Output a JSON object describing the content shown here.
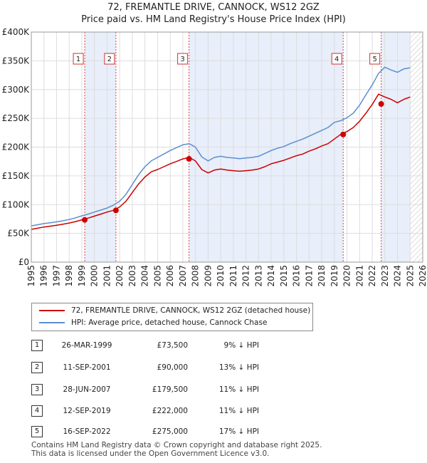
{
  "chart_data": {
    "type": "line",
    "title": "72, FREMANTLE DRIVE, CANNOCK, WS12 2GZ",
    "subtitle": "Price paid vs. HM Land Registry's House Price Index (HPI)",
    "xlim": [
      1995,
      2026
    ],
    "ylim": [
      0,
      400000
    ],
    "yticks": [
      0,
      50000,
      100000,
      150000,
      200000,
      250000,
      300000,
      350000,
      400000
    ],
    "ytick_labels": [
      "£0",
      "£50K",
      "£100K",
      "£150K",
      "£200K",
      "£250K",
      "£300K",
      "£350K",
      "£400K"
    ],
    "xticks": [
      1995,
      1996,
      1997,
      1998,
      1999,
      2000,
      2001,
      2002,
      2003,
      2004,
      2005,
      2006,
      2007,
      2008,
      2009,
      2010,
      2011,
      2012,
      2013,
      2014,
      2015,
      2016,
      2017,
      2018,
      2019,
      2020,
      2021,
      2022,
      2023,
      2024,
      2025,
      2026
    ],
    "series": [
      {
        "name": "HPI: Average price, detached house, Cannock Chase",
        "color": "#5b8fd0",
        "x": [
          1995,
          1995.5,
          1996,
          1996.5,
          1997,
          1997.5,
          1998,
          1998.5,
          1999,
          1999.5,
          2000,
          2000.5,
          2001,
          2001.5,
          2002,
          2002.5,
          2003,
          2003.5,
          2004,
          2004.5,
          2005,
          2005.5,
          2006,
          2006.5,
          2007,
          2007.5,
          2008,
          2008.5,
          2009,
          2009.5,
          2010,
          2010.5,
          2011,
          2011.5,
          2012,
          2012.5,
          2013,
          2013.5,
          2014,
          2014.5,
          2015,
          2015.5,
          2016,
          2016.5,
          2017,
          2017.5,
          2018,
          2018.5,
          2019,
          2019.5,
          2020,
          2020.5,
          2021,
          2021.5,
          2022,
          2022.5,
          2023,
          2023.5,
          2024,
          2024.5,
          2025
        ],
        "y": [
          63000,
          65000,
          67000,
          68500,
          70000,
          72000,
          74000,
          77000,
          80500,
          83500,
          87000,
          90500,
          94000,
          99000,
          106000,
          118000,
          135000,
          152000,
          166000,
          176000,
          182000,
          188000,
          194000,
          199000,
          204000,
          206000,
          200000,
          183000,
          176000,
          182000,
          184000,
          182000,
          181000,
          180000,
          181000,
          182000,
          184000,
          189000,
          194000,
          198000,
          201000,
          206000,
          210000,
          214000,
          219000,
          224000,
          229000,
          234000,
          243000,
          246000,
          251000,
          259000,
          273000,
          291000,
          308000,
          328000,
          339000,
          334000,
          330000,
          336000,
          338000
        ]
      },
      {
        "name": "72, FREMANTLE DRIVE, CANNOCK, WS12 2GZ (detached house)",
        "color": "#cc0000",
        "x": [
          1995,
          1995.5,
          1996,
          1996.5,
          1997,
          1997.5,
          1998,
          1998.5,
          1999,
          1999.5,
          2000,
          2000.5,
          2001,
          2001.5,
          2002,
          2002.5,
          2003,
          2003.5,
          2004,
          2004.5,
          2005,
          2005.5,
          2006,
          2006.5,
          2007,
          2007.5,
          2008,
          2008.5,
          2009,
          2009.5,
          2010,
          2010.5,
          2011,
          2011.5,
          2012,
          2012.5,
          2013,
          2013.5,
          2014,
          2014.5,
          2015,
          2015.5,
          2016,
          2016.5,
          2017,
          2017.5,
          2018,
          2018.5,
          2019,
          2019.5,
          2020,
          2020.5,
          2021,
          2021.5,
          2022,
          2022.5,
          2023,
          2023.5,
          2024,
          2024.5,
          2025
        ],
        "y": [
          57000,
          59000,
          61000,
          62500,
          64000,
          66000,
          68000,
          70500,
          73500,
          76500,
          80000,
          83500,
          87000,
          90000,
          96000,
          106000,
          121000,
          136000,
          148000,
          157000,
          161000,
          166000,
          171000,
          175000,
          179500,
          182000,
          176000,
          161000,
          155000,
          160000,
          162000,
          160000,
          159000,
          158000,
          159000,
          160000,
          162000,
          166000,
          171000,
          174000,
          177000,
          181000,
          185000,
          188000,
          193000,
          197000,
          202000,
          206000,
          214000,
          222000,
          227000,
          234000,
          245000,
          259000,
          274000,
          292000,
          287000,
          283000,
          277000,
          283000,
          287000
        ]
      }
    ],
    "sales": [
      {
        "num": "1",
        "x": 1999.23,
        "date": "26-MAR-1999",
        "price": 73500,
        "price_label": "£73,500",
        "hpi_delta": "9% ↓ HPI"
      },
      {
        "num": "2",
        "x": 2001.7,
        "date": "11-SEP-2001",
        "price": 90000,
        "price_label": "£90,000",
        "hpi_delta": "13% ↓ HPI"
      },
      {
        "num": "3",
        "x": 2007.49,
        "date": "28-JUN-2007",
        "price": 179500,
        "price_label": "£179,500",
        "hpi_delta": "11% ↓ HPI"
      },
      {
        "num": "4",
        "x": 2019.7,
        "date": "12-SEP-2019",
        "price": 222000,
        "price_label": "£222,000",
        "hpi_delta": "11% ↓ HPI"
      },
      {
        "num": "5",
        "x": 2022.71,
        "date": "16-SEP-2022",
        "price": 275000,
        "price_label": "£275,000",
        "hpi_delta": "17% ↓ HPI"
      }
    ],
    "shaded_spans": [
      [
        1999.23,
        2001.7
      ],
      [
        2007.49,
        2019.7
      ],
      [
        2022.71,
        2025.0
      ]
    ],
    "future_hatch_from": 2025.0,
    "legend": {
      "property": "72, FREMANTLE DRIVE, CANNOCK, WS12 2GZ (detached house)",
      "hpi": "HPI: Average price, detached house, Cannock Chase"
    },
    "grid": true
  },
  "footer": {
    "line1": "Contains HM Land Registry data © Crown copyright and database right 2025.",
    "line2": "This data is licensed under the Open Government Licence v3.0."
  },
  "colors": {
    "property": "#cc0000",
    "hpi": "#5b8fd0",
    "shade": "#e8eefa",
    "vline": "#dd4444"
  }
}
